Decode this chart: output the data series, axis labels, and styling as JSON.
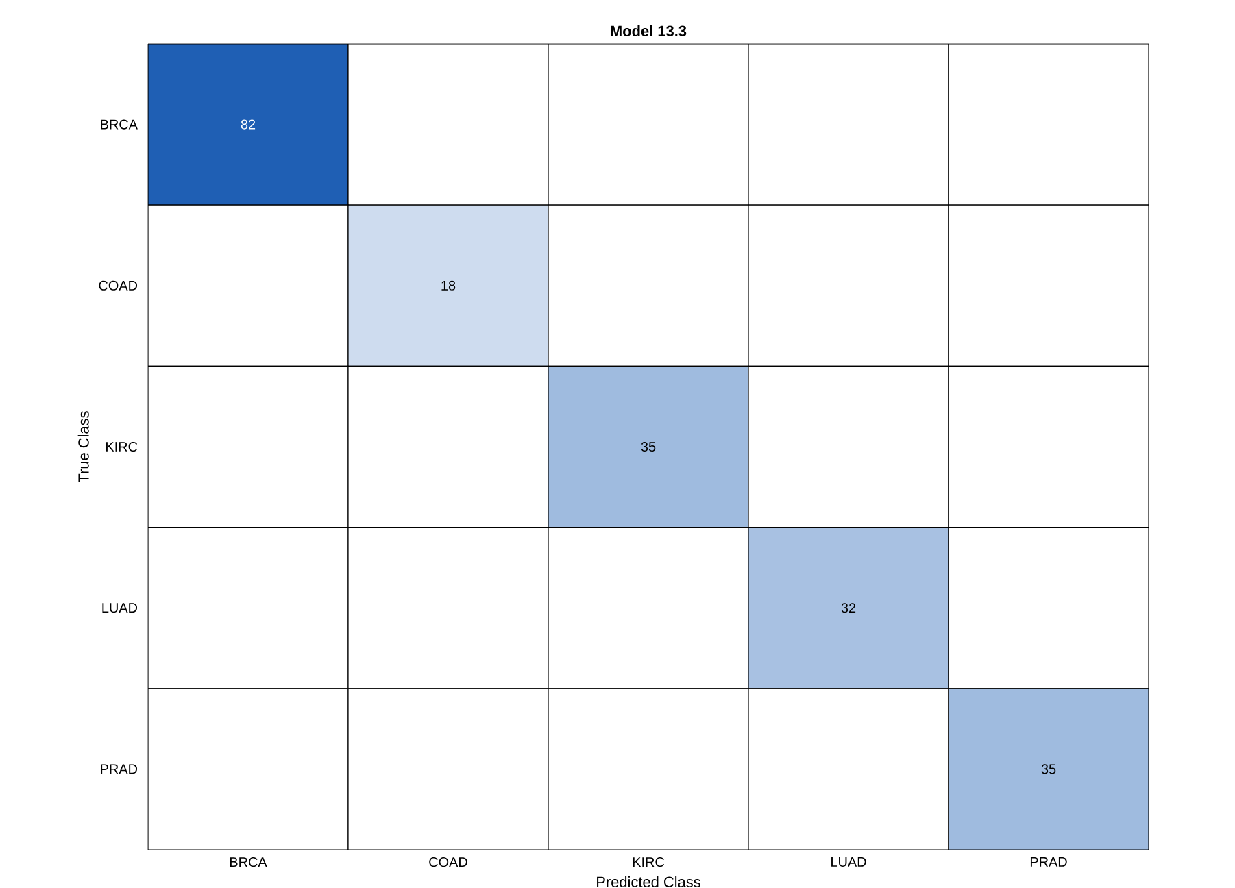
{
  "chart_data": {
    "type": "heatmap",
    "title": "Model 13.3",
    "xlabel": "Predicted Class",
    "ylabel": "True Class",
    "color": "#1f5fb4",
    "data_labels": true,
    "categories": [
      "BRCA",
      "COAD",
      "KIRC",
      "LUAD",
      "PRAD"
    ],
    "y_categories": [
      "BRCA",
      "COAD",
      "KIRC",
      "LUAD",
      "PRAD"
    ],
    "cells": [
      [
        82,
        null,
        null,
        null,
        null
      ],
      [
        null,
        18,
        null,
        null,
        null
      ],
      [
        null,
        null,
        35,
        null,
        null
      ],
      [
        null,
        null,
        null,
        32,
        null
      ],
      [
        null,
        null,
        null,
        null,
        35
      ]
    ]
  }
}
